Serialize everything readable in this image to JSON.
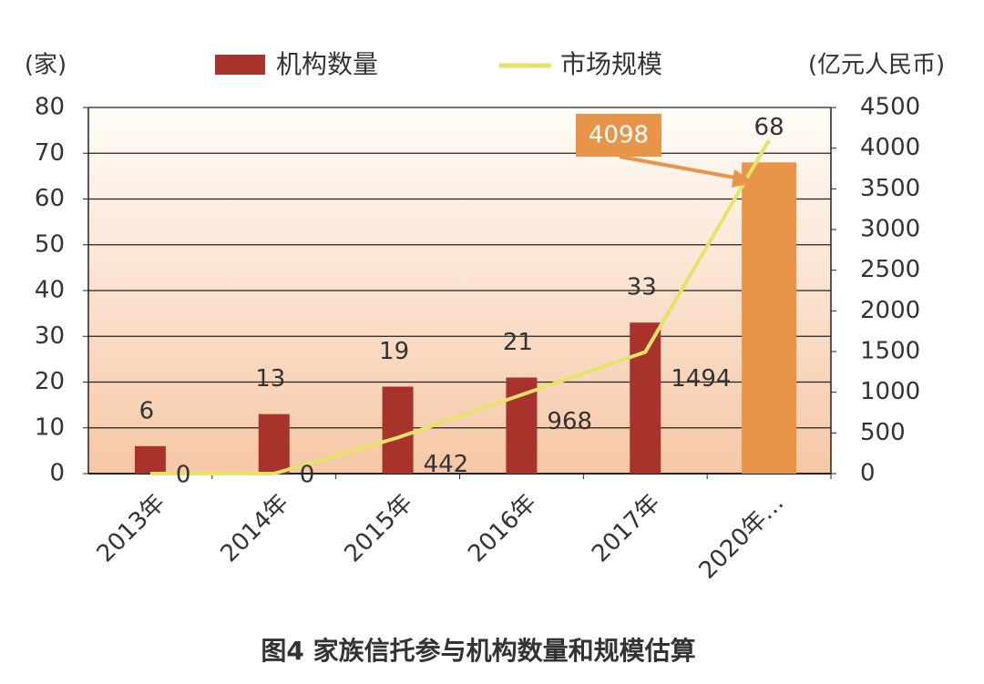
{
  "chart_data": {
    "type": "bar_line",
    "title": "图4  家族信托参与机构数量和规模估算",
    "y_label": "(家)",
    "y2_label": "(亿元人民币)",
    "categories": [
      "2013年",
      "2014年",
      "2015年",
      "2016年",
      "2017年",
      "2020年…"
    ],
    "series": [
      {
        "name": "机构数量",
        "type": "bar",
        "color": "#a8332d",
        "colors": [
          "#a8332d",
          "#a8332d",
          "#a8332d",
          "#a8332d",
          "#a8332d",
          "#e8954a"
        ],
        "values": [
          6,
          13,
          19,
          21,
          33,
          68
        ]
      },
      {
        "name": "市场规模",
        "type": "line",
        "axis": "y2",
        "color": "#e6e36a",
        "values": [
          0,
          0,
          442,
          968,
          1494,
          4098
        ]
      }
    ],
    "ylim": [
      0,
      80
    ],
    "yticks": [
      0,
      10,
      20,
      30,
      40,
      50,
      60,
      70,
      80
    ],
    "y2lim": [
      0,
      4500
    ],
    "y2ticks": [
      0,
      500,
      1000,
      1500,
      2000,
      2500,
      3000,
      3500,
      4000,
      4500
    ],
    "grid": true,
    "legend": "top"
  }
}
